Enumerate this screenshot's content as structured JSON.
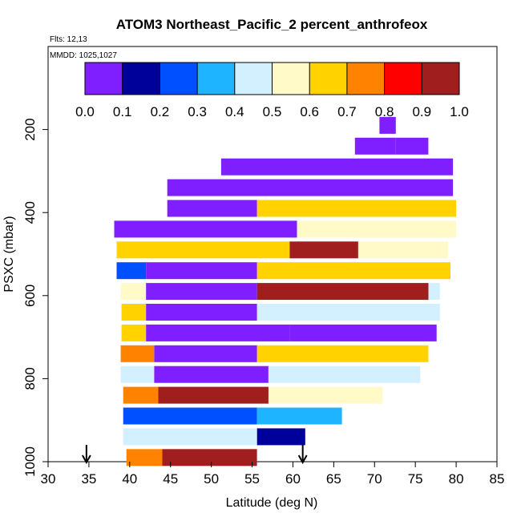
{
  "chart_data": {
    "type": "heatmap",
    "title": "ATOM3 Northeast_Pacific_2 percent_anthrofeox",
    "flights_label": "Flts: 12,13",
    "dates_label": "MMDD: 1025,1027",
    "xlabel": "Latitude (deg N)",
    "ylabel": "PSXC (mbar)",
    "xlim": [
      30,
      85
    ],
    "ylim": [
      1000,
      0
    ],
    "x_ticks": [
      30,
      35,
      40,
      45,
      50,
      55,
      60,
      65,
      70,
      75,
      80,
      85
    ],
    "y_ticks": [
      200,
      400,
      600,
      800,
      1000
    ],
    "colorbar": {
      "range": [
        0.0,
        1.0
      ],
      "ticks": [
        "0.0",
        "0.1",
        "0.2",
        "0.3",
        "0.4",
        "0.5",
        "0.6",
        "0.7",
        "0.8",
        "0.9",
        "1.0"
      ],
      "colors": [
        "#7f1eff",
        "#00009a",
        "#0050ff",
        "#1eb4ff",
        "#d2f0ff",
        "#fffac8",
        "#ffd200",
        "#ff8200",
        "#ff0000",
        "#a01e1e"
      ]
    },
    "arrows_latitude": [
      34.7,
      61.2
    ],
    "rows": [
      {
        "p": 190,
        "segments": [
          [
            70.6,
            72.6,
            0.0
          ]
        ]
      },
      {
        "p": 240,
        "segments": [
          [
            67.6,
            72.6,
            0.0
          ],
          [
            72.6,
            76.6,
            0.0
          ]
        ]
      },
      {
        "p": 290,
        "segments": [
          [
            51.2,
            79.6,
            0.0
          ]
        ]
      },
      {
        "p": 340,
        "segments": [
          [
            44.6,
            79.6,
            0.0
          ]
        ]
      },
      {
        "p": 390,
        "segments": [
          [
            44.6,
            55.6,
            0.0
          ],
          [
            55.6,
            80.0,
            0.62
          ]
        ]
      },
      {
        "p": 440,
        "segments": [
          [
            38.1,
            60.5,
            0.0
          ],
          [
            60.5,
            80.0,
            0.58
          ]
        ]
      },
      {
        "p": 490,
        "segments": [
          [
            38.4,
            59.6,
            0.6
          ],
          [
            59.6,
            68.0,
            0.97
          ],
          [
            68.0,
            79.0,
            0.55
          ]
        ]
      },
      {
        "p": 540,
        "segments": [
          [
            38.4,
            42.0,
            0.25
          ],
          [
            42.0,
            55.6,
            0.0
          ],
          [
            55.6,
            79.3,
            0.6
          ]
        ]
      },
      {
        "p": 590,
        "segments": [
          [
            38.9,
            42.0,
            0.55
          ],
          [
            42.0,
            55.6,
            0.0
          ],
          [
            55.6,
            76.6,
            0.96
          ],
          [
            76.6,
            78.0,
            0.4
          ]
        ]
      },
      {
        "p": 640,
        "segments": [
          [
            39.0,
            42.0,
            0.6
          ],
          [
            42.0,
            55.6,
            0.0
          ],
          [
            55.6,
            78.0,
            0.45
          ]
        ]
      },
      {
        "p": 690,
        "segments": [
          [
            39.0,
            42.0,
            0.6
          ],
          [
            42.0,
            59.6,
            0.0
          ],
          [
            59.6,
            77.6,
            0.0
          ]
        ]
      },
      {
        "p": 740,
        "segments": [
          [
            38.9,
            43.0,
            0.7
          ],
          [
            43.0,
            55.6,
            0.0
          ],
          [
            55.6,
            76.6,
            0.6
          ]
        ]
      },
      {
        "p": 790,
        "segments": [
          [
            38.9,
            43.0,
            0.4
          ],
          [
            43.0,
            57.0,
            0.0
          ],
          [
            57.0,
            75.6,
            0.45
          ]
        ]
      },
      {
        "p": 840,
        "segments": [
          [
            39.2,
            43.5,
            0.75
          ],
          [
            43.5,
            57.0,
            0.95
          ],
          [
            57.0,
            71.0,
            0.55
          ]
        ]
      },
      {
        "p": 890,
        "segments": [
          [
            39.2,
            55.6,
            0.2
          ],
          [
            55.6,
            66.0,
            0.38
          ]
        ]
      },
      {
        "p": 940,
        "segments": [
          [
            39.2,
            55.6,
            0.42
          ],
          [
            55.6,
            61.5,
            0.12
          ]
        ]
      },
      {
        "p": 990,
        "segments": [
          [
            39.6,
            44.0,
            0.75
          ],
          [
            44.0,
            55.6,
            0.97
          ]
        ]
      }
    ]
  }
}
